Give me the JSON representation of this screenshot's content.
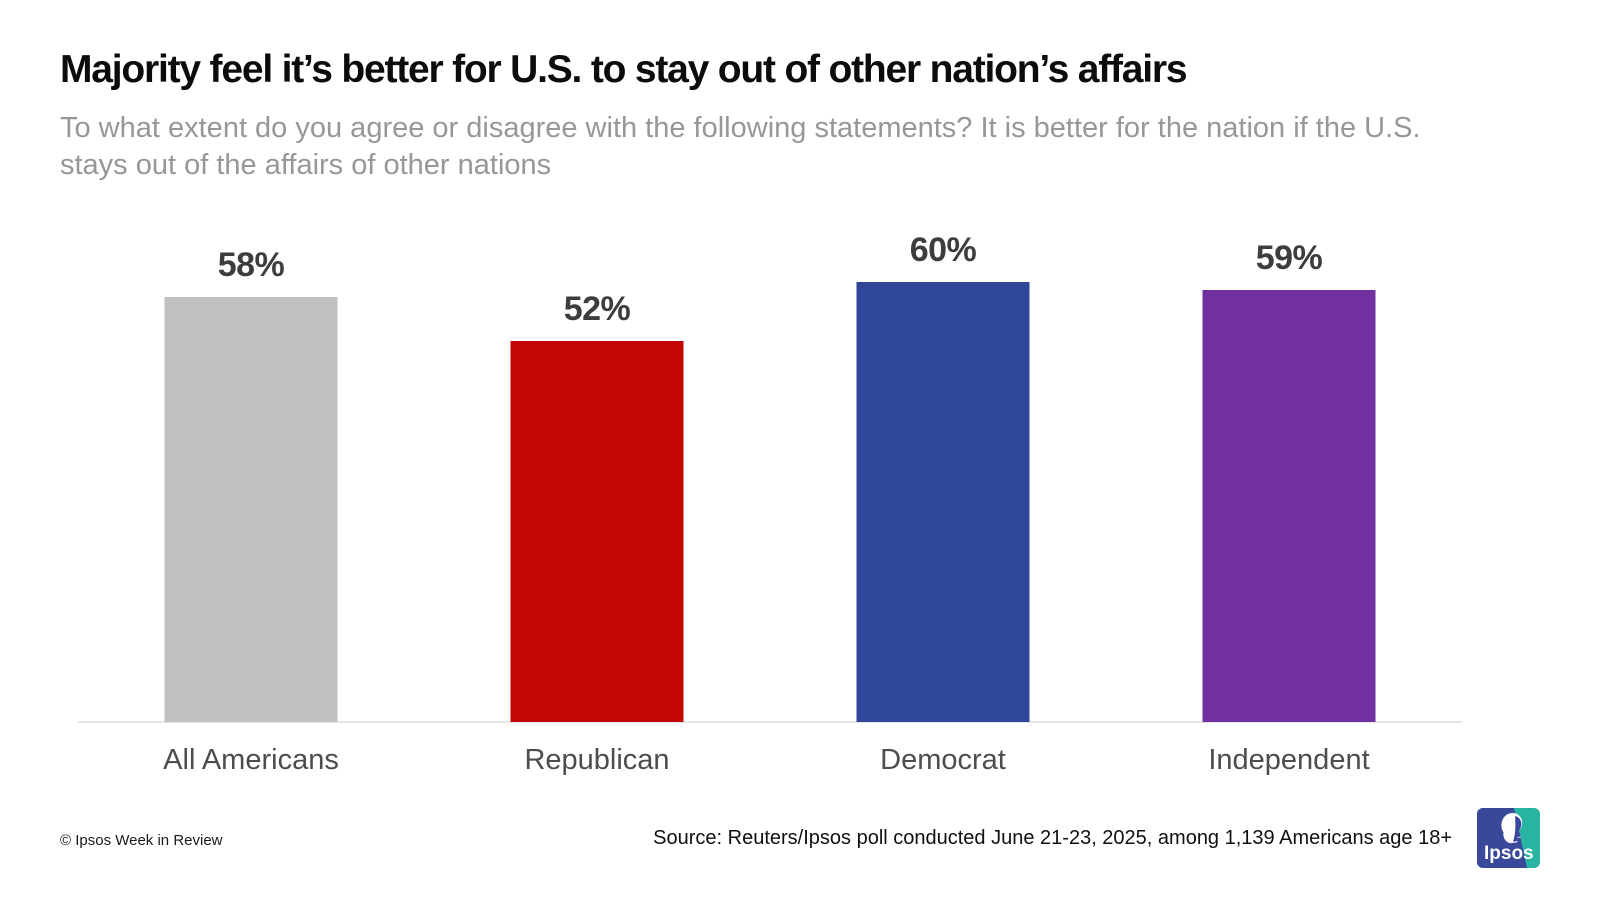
{
  "header": {
    "title": "Majority feel it’s better for U.S. to stay out of other nation’s affairs",
    "subtitle": "To what extent do you agree or disagree with the following statements? It is better for the nation if the U.S. stays out of the affairs of other nations"
  },
  "chart_data": {
    "type": "bar",
    "title": "Majority feel it’s better for U.S. to stay out of other nation’s affairs",
    "categories": [
      "All Americans",
      "Republican",
      "Democrat",
      "Independent"
    ],
    "values": [
      58,
      52,
      60,
      59
    ],
    "value_label_format": "percent",
    "colors": [
      "#c1c1c1",
      "#c20606",
      "#2f4699",
      "#7030a0"
    ],
    "xlabel": "",
    "ylabel": "",
    "ylim": [
      0,
      66
    ],
    "grid": false,
    "legend": false,
    "value_label_color": "#3d3d3d",
    "axis_line_color": "#e6e6e6"
  },
  "footer": {
    "copyright": "© Ipsos Week in Review",
    "source": "Source: Reuters/Ipsos poll conducted June 21-23, 2025, among 1,139 Americans age 18+",
    "logo_text": "Ipsos",
    "logo_blue": "#3a4899",
    "logo_teal": "#28b3a2"
  }
}
